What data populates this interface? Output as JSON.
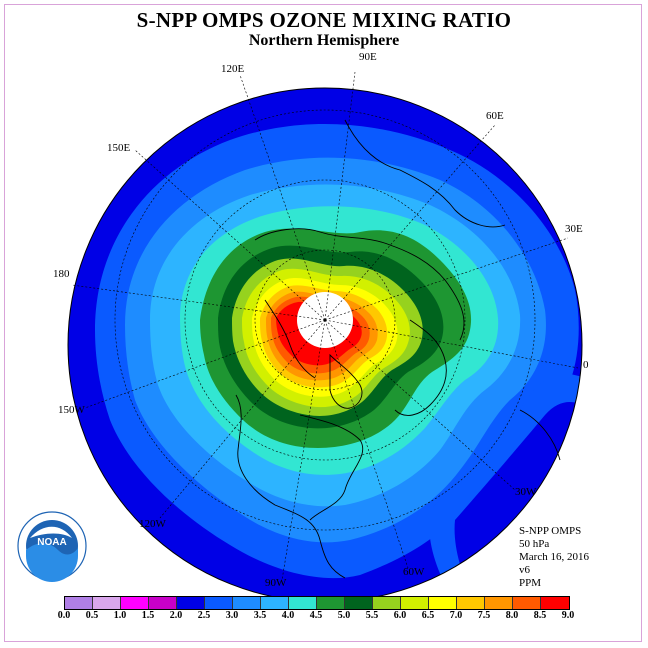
{
  "title": "S-NPP OMPS OZONE MIXING RATIO",
  "subtitle": "Northern Hemisphere",
  "longitude_labels": {
    "e90": "90E",
    "e60": "60E",
    "e30": "30E",
    "lon0": "0",
    "w30": "30W",
    "w60": "60W",
    "w90": "90W",
    "w120": "120W",
    "w150": "150W",
    "lon180": "180",
    "e150": "150E",
    "e120": "120E"
  },
  "info": {
    "instrument": "S-NPP OMPS",
    "level": "50 hPa",
    "date": "March 16, 2016",
    "version": "v6",
    "units": "PPM"
  },
  "logo": {
    "text": "NOAA",
    "ring_text": "NATIONAL OCEANIC AND ATMOSPHERIC ADMINISTRATION · U.S. DEPARTMENT OF COMMERCE"
  },
  "colorbar": {
    "ticks": [
      "0.0",
      "0.5",
      "1.0",
      "1.5",
      "2.0",
      "2.5",
      "3.0",
      "3.5",
      "4.0",
      "4.5",
      "5.0",
      "5.5",
      "6.0",
      "6.5",
      "7.0",
      "7.5",
      "8.0",
      "8.5",
      "9.0"
    ],
    "colors": [
      "#b07fe6",
      "#d9a6ec",
      "#ff00ff",
      "#c800c8",
      "#0000e6",
      "#0a5aff",
      "#1e8cff",
      "#2db4ff",
      "#32e6d2",
      "#1e9632",
      "#00641e",
      "#96d21e",
      "#d2f000",
      "#ffff00",
      "#ffc800",
      "#ff9600",
      "#ff5a00",
      "#ff0000",
      "#8b5a3c"
    ]
  },
  "map_colors": {
    "c2_0": "#0000e6",
    "c2_5": "#0a5aff",
    "c3_0": "#1e8cff",
    "c3_5": "#2db4ff",
    "c4_0": "#32e6d2",
    "c4_5": "#1e9632",
    "c5_0": "#00641e",
    "c5_5": "#96d21e",
    "c6_0": "#d2f000",
    "c6_5": "#ffff00",
    "c7_0": "#ffc800",
    "c7_5": "#ff9600",
    "c8_0": "#ff5a00",
    "c8_5": "#ff0000",
    "nodata": "#ffffff"
  }
}
